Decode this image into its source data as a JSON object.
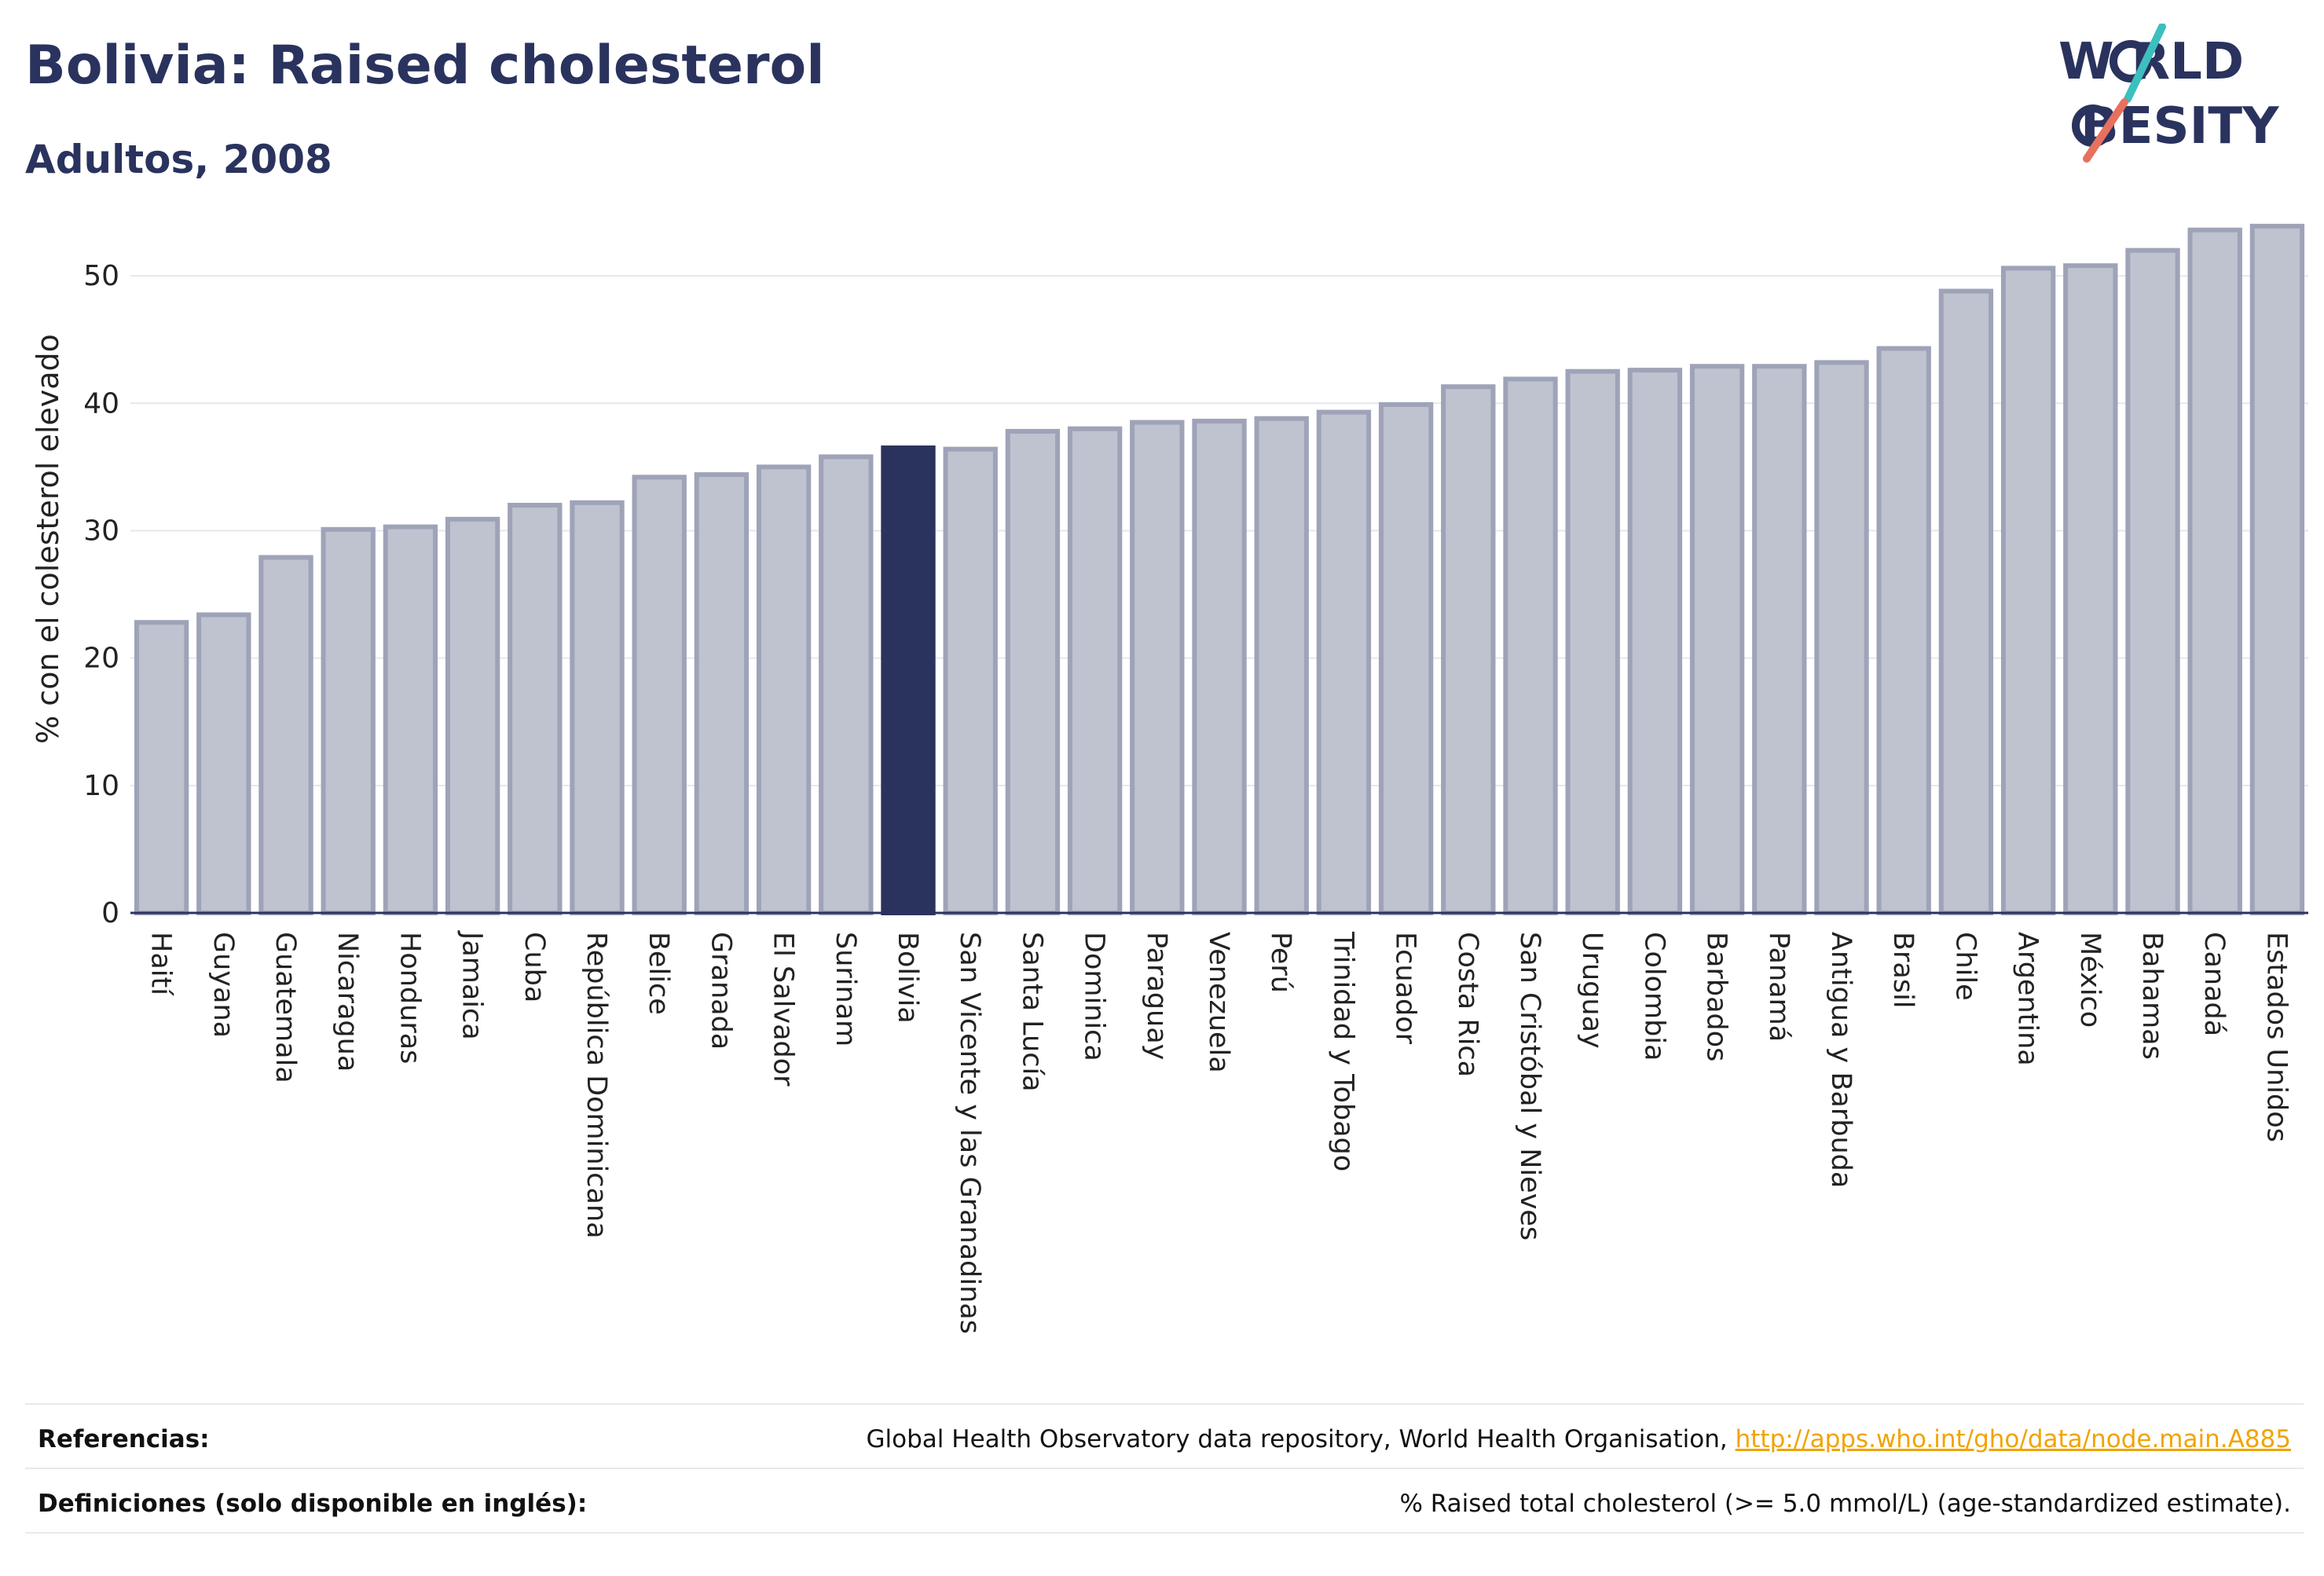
{
  "header": {
    "title": "Bolivia: Raised cholesterol",
    "subtitle": "Adultos, 2008"
  },
  "logo": {
    "line1": "W RLD",
    "line2": "BESITY",
    "text": "WORLD OBESITY",
    "colors": {
      "navy": "#2a335e",
      "teal": "#3cbfbf",
      "coral": "#e8705e"
    }
  },
  "chart_data": {
    "type": "bar",
    "title": "Bolivia: Raised cholesterol",
    "subtitle": "Adultos, 2008",
    "ylabel": "% con el colesterol elevado",
    "xlabel": "",
    "ylim": [
      0,
      55
    ],
    "yticks": [
      0,
      10,
      20,
      30,
      40,
      50
    ],
    "grid": true,
    "highlight": "Bolivia",
    "colors": {
      "bar": "#bfc2cf",
      "bar_edge": "#9ea3b8",
      "highlight": "#2a335e"
    },
    "categories": [
      "Haití",
      "Guyana",
      "Guatemala",
      "Nicaragua",
      "Honduras",
      "Jamaica",
      "Cuba",
      "República Dominicana",
      "Belice",
      "Granada",
      "El Salvador",
      "Surinam",
      "Bolivia",
      "San Vicente y las Granadinas",
      "Santa Lucía",
      "Dominica",
      "Paraguay",
      "Venezuela",
      "Perú",
      "Trinidad y Tobago",
      "Ecuador",
      "Costa Rica",
      "San Cristóbal y Nieves",
      "Uruguay",
      "Colombia",
      "Barbados",
      "Panamá",
      "Antigua y Barbuda",
      "Brasil",
      "Chile",
      "Argentina",
      "México",
      "Bahamas",
      "Canadá",
      "Estados Unidos"
    ],
    "values": [
      22.8,
      23.4,
      27.9,
      30.1,
      30.3,
      30.9,
      32.0,
      32.2,
      34.2,
      34.4,
      35.0,
      35.8,
      36.5,
      36.4,
      37.8,
      38.0,
      38.5,
      38.6,
      38.8,
      39.3,
      39.9,
      41.3,
      41.9,
      42.5,
      42.6,
      42.9,
      42.9,
      43.2,
      44.3,
      48.8,
      50.6,
      50.8,
      52.0,
      53.6,
      53.9
    ]
  },
  "footer": {
    "references_label": "Referencias:",
    "references_text": "Global Health Observatory data repository, World Health Organisation, ",
    "references_link": "http://apps.who.int/gho/data/node.main.A885",
    "definitions_label": "Definiciones (solo disponible en inglés):",
    "definitions_text": "% Raised total cholesterol (>= 5.0 mmol/L) (age-standardized estimate)."
  }
}
